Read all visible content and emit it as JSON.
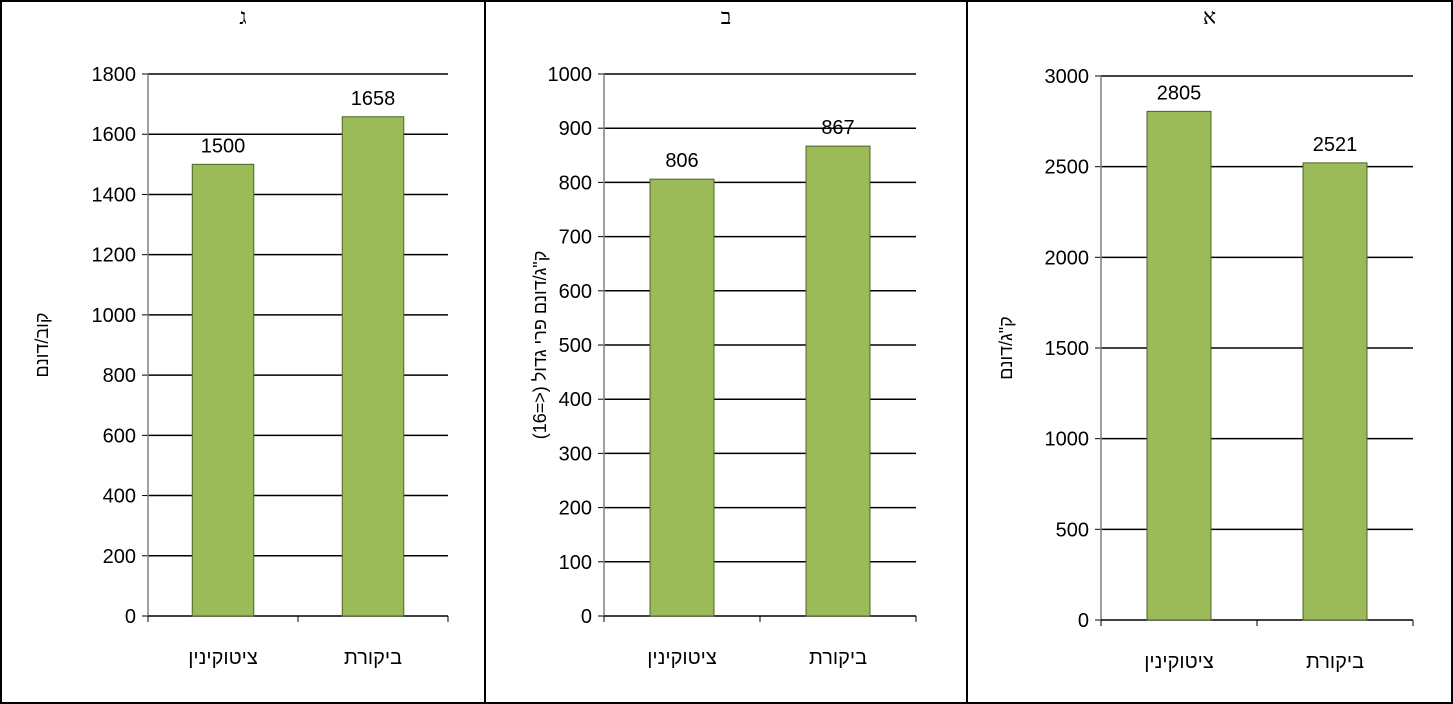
{
  "colors": {
    "bar_fill": "#9bbb59",
    "bar_stroke": "#4f6228",
    "grid": "#000000",
    "border": "#000000"
  },
  "chart_data": [
    {
      "panel": "ג",
      "type": "bar",
      "categories": [
        "ציטוקינין",
        "ביקורת"
      ],
      "values": [
        1500,
        1658
      ],
      "data_labels": [
        "1500",
        "1658"
      ],
      "ylabel": "קוב/דונם",
      "ylim": [
        0,
        1800
      ],
      "yticks": [
        0,
        200,
        400,
        600,
        800,
        1000,
        1200,
        1400,
        1600,
        1800
      ],
      "grid": true
    },
    {
      "panel": "ב",
      "type": "bar",
      "categories": [
        "ציטוקינין",
        "ביקורת"
      ],
      "values": [
        806,
        867
      ],
      "data_labels": [
        "806",
        "867"
      ],
      "ylabel": "ק\"ג/דונם פרי גדול (<=16)",
      "ylim": [
        0,
        1000
      ],
      "yticks": [
        0,
        100,
        200,
        300,
        400,
        500,
        600,
        700,
        800,
        900,
        1000
      ],
      "grid": true
    },
    {
      "panel": "א",
      "type": "bar",
      "categories": [
        "ציטוקינין",
        "ביקורת"
      ],
      "values": [
        2805,
        2521
      ],
      "data_labels": [
        "2805",
        "2521"
      ],
      "ylabel": "ק\"ג/דונם",
      "ylim": [
        0,
        3000
      ],
      "yticks": [
        0,
        500,
        1000,
        1500,
        2000,
        2500,
        3000
      ],
      "grid": true
    }
  ]
}
